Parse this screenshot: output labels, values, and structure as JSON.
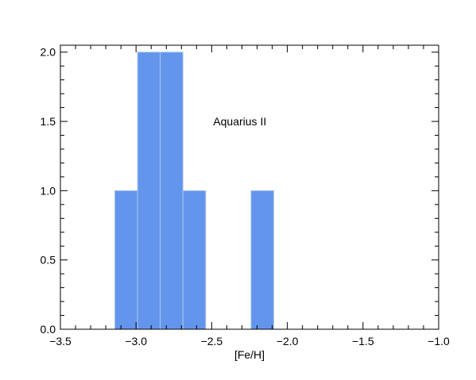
{
  "chart_data": {
    "type": "bar",
    "subtype": "histogram",
    "bins": [
      {
        "x0": -3.14,
        "x1": -2.99,
        "count": 1
      },
      {
        "x0": -2.99,
        "x1": -2.84,
        "count": 2
      },
      {
        "x0": -2.84,
        "x1": -2.69,
        "count": 2
      },
      {
        "x0": -2.69,
        "x1": -2.54,
        "count": 1
      },
      {
        "x0": -2.24,
        "x1": -2.09,
        "count": 1
      }
    ],
    "xlabel": "[Fe/H]",
    "ylabel": "",
    "xlim": [
      -3.5,
      -1.0
    ],
    "ylim": [
      0.0,
      2.05
    ],
    "xticks": [
      -3.5,
      -3.0,
      -2.5,
      -2.0,
      -1.5,
      -1.0
    ],
    "xtick_labels": [
      "−3.5",
      "−3.0",
      "−2.5",
      "−2.0",
      "−1.5",
      "−1.0"
    ],
    "yticks": [
      0.0,
      0.5,
      1.0,
      1.5,
      2.0
    ],
    "ytick_labels": [
      "0.0",
      "0.5",
      "1.0",
      "1.5",
      "2.0"
    ],
    "annotation": {
      "text": "Aquarius II",
      "x": -2.49,
      "y": 1.5
    },
    "bar_color": "#6495ED",
    "bar_edge_color": "#a8c4f0",
    "grid": false
  }
}
